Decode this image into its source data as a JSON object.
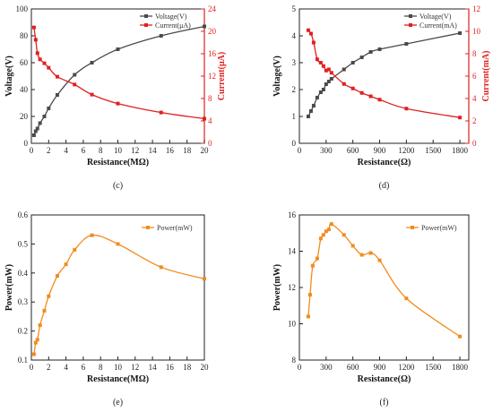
{
  "colors": {
    "voltage": "#4a4a4a",
    "current": "#e02020",
    "power": "#f08c1e",
    "axis": "#222222"
  },
  "chart_data": [
    {
      "id": "c",
      "panel_label": "(c)",
      "type": "line",
      "xlabel": "Resistance(MΩ)",
      "ylabel": "Voltage(V)",
      "y2label": "Current(μA)",
      "xlim": [
        0,
        20
      ],
      "ylim": [
        0,
        100
      ],
      "y2lim": [
        0,
        24
      ],
      "xticks": [
        0,
        2,
        4,
        6,
        8,
        10,
        12,
        14,
        16,
        18,
        20
      ],
      "yticks": [
        0,
        20,
        40,
        60,
        80,
        100
      ],
      "y2ticks": [
        0,
        4,
        8,
        12,
        16,
        20,
        24
      ],
      "grid": false,
      "legend_position": "top-right",
      "series": [
        {
          "name": "Voltage(V)",
          "axis": "left",
          "marker": "square",
          "x": [
            0.3,
            0.5,
            0.7,
            1.0,
            1.5,
            2.0,
            3.0,
            5.0,
            7.0,
            10.0,
            15.0,
            20.0
          ],
          "values": [
            6,
            9,
            11,
            15,
            20,
            26,
            36,
            51,
            60,
            70,
            80,
            87
          ]
        },
        {
          "name": "Current(μA)",
          "axis": "right",
          "marker": "square",
          "x": [
            0.3,
            0.5,
            0.7,
            1.0,
            1.5,
            2.0,
            3.0,
            5.0,
            7.0,
            10.0,
            15.0,
            20.0
          ],
          "values": [
            20.7,
            18.5,
            16.1,
            15.0,
            14.3,
            13.5,
            11.9,
            10.5,
            8.7,
            7.1,
            5.5,
            4.4
          ]
        }
      ]
    },
    {
      "id": "d",
      "panel_label": "(d)",
      "type": "line",
      "xlabel": "Resistance(Ω)",
      "ylabel": "Voltage(V)",
      "y2label": "Current(mA)",
      "xlim": [
        0,
        1900
      ],
      "ylim": [
        0,
        5
      ],
      "y2lim": [
        0,
        12
      ],
      "xticks": [
        0,
        300,
        600,
        900,
        1200,
        1500,
        1800
      ],
      "yticks": [
        0,
        1,
        2,
        3,
        4,
        5
      ],
      "y2ticks": [
        0,
        2,
        4,
        6,
        8,
        10,
        12
      ],
      "grid": false,
      "legend_position": "top-right",
      "series": [
        {
          "name": "Voltage(V)",
          "axis": "left",
          "marker": "square",
          "x": [
            100,
            130,
            160,
            200,
            240,
            270,
            300,
            330,
            360,
            500,
            600,
            700,
            800,
            900,
            1200,
            1800
          ],
          "values": [
            1.0,
            1.2,
            1.4,
            1.7,
            1.9,
            2.0,
            2.2,
            2.3,
            2.4,
            2.75,
            3.0,
            3.2,
            3.4,
            3.5,
            3.7,
            4.1
          ]
        },
        {
          "name": "Current(mA)",
          "axis": "right",
          "marker": "square",
          "x": [
            100,
            130,
            160,
            200,
            240,
            270,
            300,
            330,
            360,
            500,
            600,
            700,
            800,
            900,
            1200,
            1800
          ],
          "values": [
            10.1,
            9.8,
            9.0,
            7.5,
            7.2,
            6.9,
            6.5,
            6.6,
            6.3,
            5.3,
            4.9,
            4.5,
            4.2,
            3.9,
            3.1,
            2.3
          ]
        }
      ]
    },
    {
      "id": "e",
      "panel_label": "(e)",
      "type": "line",
      "xlabel": "Resistance(MΩ)",
      "ylabel": "Power(mW)",
      "xlim": [
        0,
        20
      ],
      "ylim": [
        0.1,
        0.6
      ],
      "xticks": [
        0,
        2,
        4,
        6,
        8,
        10,
        12,
        14,
        16,
        18,
        20
      ],
      "yticks": [
        0.1,
        0.2,
        0.3,
        0.4,
        0.5,
        0.6
      ],
      "grid": false,
      "legend_position": "top-right",
      "series": [
        {
          "name": "Power(mW)",
          "marker": "square",
          "x": [
            0.3,
            0.5,
            0.7,
            1.0,
            1.5,
            2.0,
            3.0,
            4.0,
            5.0,
            7.0,
            10.0,
            15.0,
            20.0
          ],
          "values": [
            0.12,
            0.16,
            0.17,
            0.22,
            0.27,
            0.32,
            0.39,
            0.43,
            0.48,
            0.53,
            0.5,
            0.42,
            0.38
          ]
        }
      ]
    },
    {
      "id": "f",
      "panel_label": "(f)",
      "type": "line",
      "xlabel": "Resistance(Ω)",
      "ylabel": "Power(mW)",
      "xlim": [
        0,
        1900
      ],
      "ylim": [
        8,
        16
      ],
      "xticks": [
        0,
        300,
        600,
        900,
        1200,
        1500,
        1800
      ],
      "yticks": [
        8,
        10,
        12,
        14,
        16
      ],
      "grid": false,
      "legend_position": "top-right",
      "series": [
        {
          "name": "Power(mW)",
          "marker": "square",
          "x": [
            100,
            120,
            150,
            200,
            240,
            270,
            300,
            330,
            360,
            500,
            600,
            700,
            800,
            900,
            1200,
            1800
          ],
          "values": [
            10.4,
            11.6,
            13.2,
            13.6,
            14.7,
            14.9,
            15.1,
            15.2,
            15.5,
            14.9,
            14.3,
            13.8,
            13.9,
            13.5,
            11.4,
            9.3
          ]
        }
      ]
    }
  ]
}
